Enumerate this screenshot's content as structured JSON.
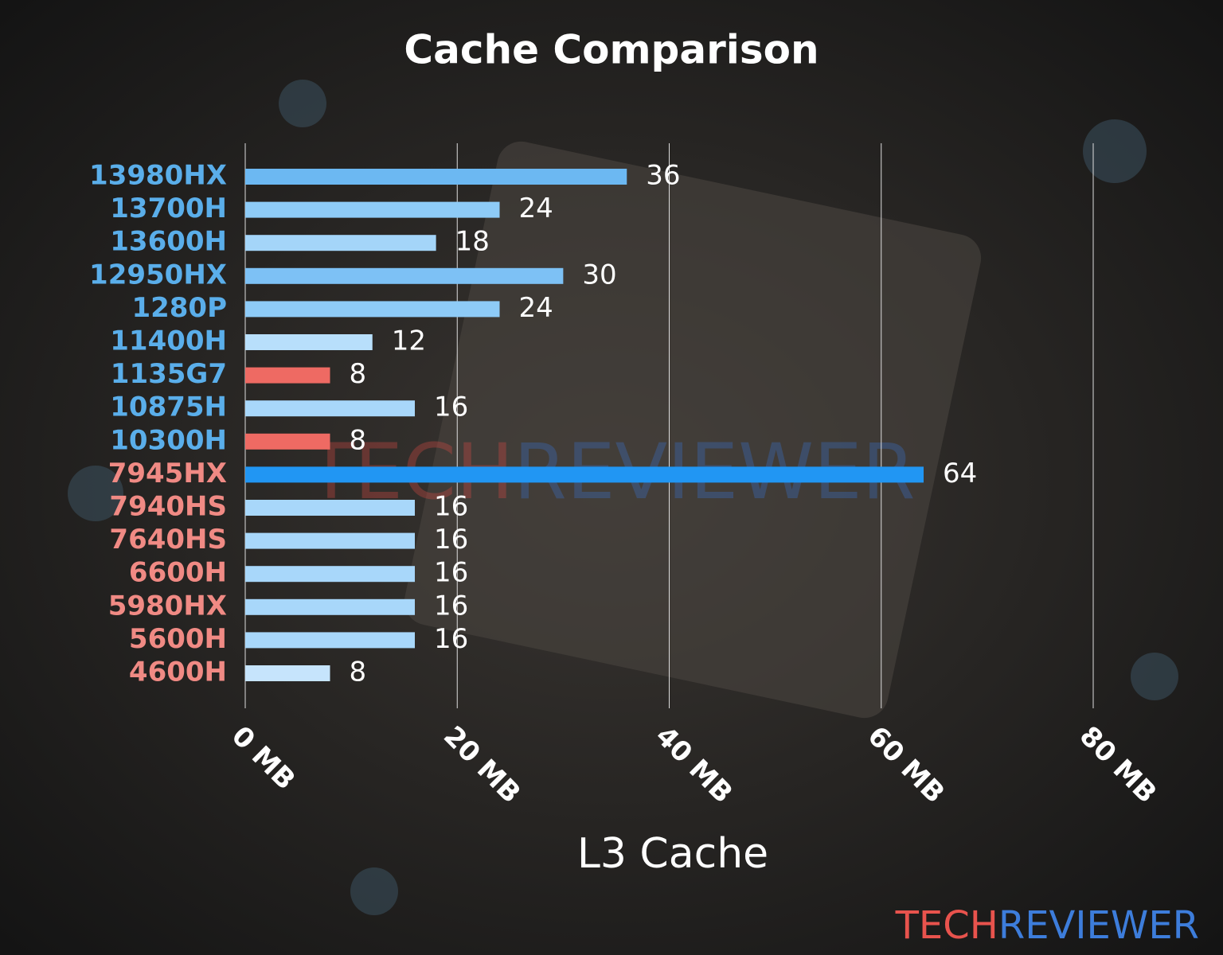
{
  "chart_data": {
    "type": "barh",
    "title": "Cache Comparison",
    "x_label": "L3 Cache",
    "categories": [
      "13980HX",
      "13700H",
      "13600H",
      "12950HX",
      "1280P",
      "11400H",
      "1135G7",
      "10875H",
      "10300H",
      "7945HX",
      "7940HS",
      "7640HS",
      "6600H",
      "5980HX",
      "5600H",
      "4600H"
    ],
    "values": [
      36,
      24,
      18,
      30,
      24,
      12,
      8,
      16,
      8,
      64,
      16,
      16,
      16,
      16,
      16,
      8
    ],
    "colors": [
      "#6cb8f2",
      "#8ecbf7",
      "#a4d5f9",
      "#7dc1f5",
      "#8ecbf7",
      "#b8dffb",
      "#ee6a63",
      "#a8d7fa",
      "#ee6a63",
      "#2196f3",
      "#a8d7fa",
      "#a8d7fa",
      "#a8d7fa",
      "#a8d7fa",
      "#a8d7fa",
      "#c6e4fc"
    ],
    "label_colors": [
      "#5aaeea",
      "#5aaeea",
      "#5aaeea",
      "#5aaeea",
      "#5aaeea",
      "#5aaeea",
      "#5aaeea",
      "#5aaeea",
      "#5aaeea",
      "#f08a84",
      "#f08a84",
      "#f08a84",
      "#f08a84",
      "#f08a84",
      "#f08a84",
      "#f08a84"
    ],
    "xlim": [
      0,
      80
    ],
    "xticks": [
      {
        "value": 0,
        "label": "0 MB"
      },
      {
        "value": 20,
        "label": "20 MB"
      },
      {
        "value": 40,
        "label": "40 MB"
      },
      {
        "value": 60,
        "label": "60 MB"
      },
      {
        "value": 80,
        "label": "80 MB"
      }
    ],
    "grid": true,
    "logo": {
      "part1": "TECH",
      "part2": "REVIEWER"
    }
  }
}
